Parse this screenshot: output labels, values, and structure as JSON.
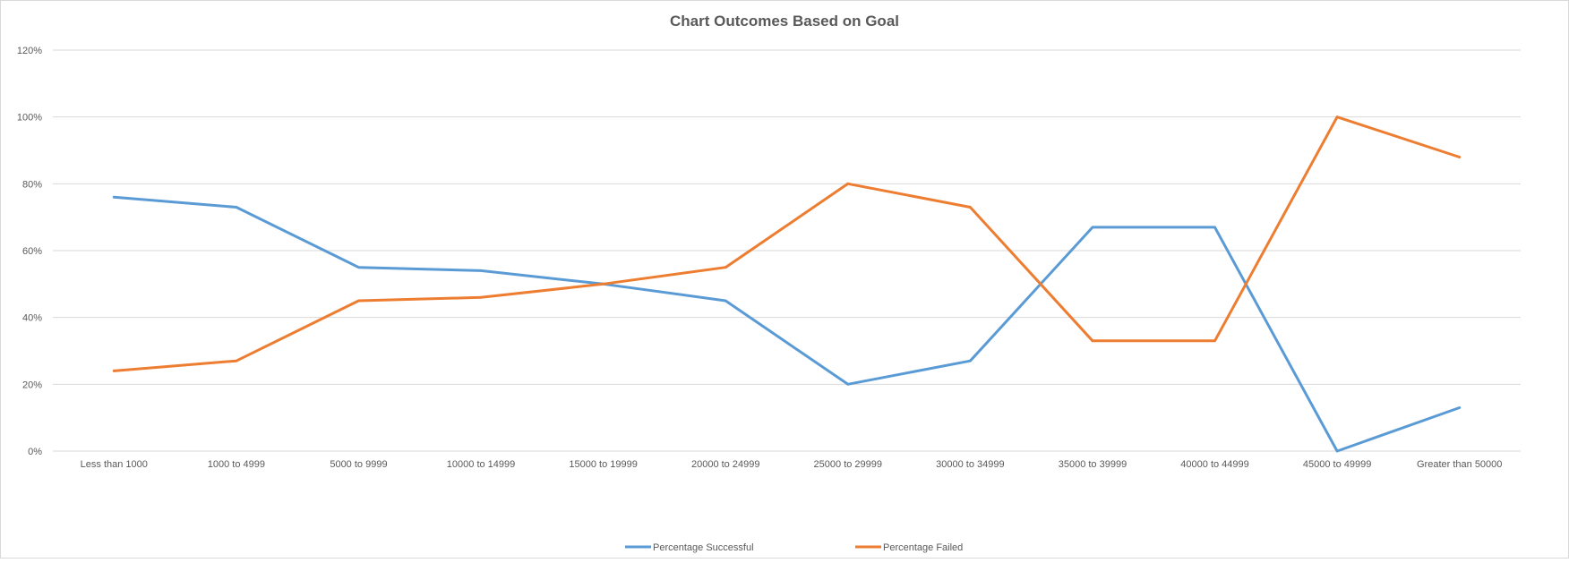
{
  "chart_data": {
    "type": "line",
    "title": "Chart Outcomes Based on Goal",
    "xlabel": "",
    "ylabel": "",
    "categories": [
      "Less than 1000",
      "1000 to 4999",
      "5000 to 9999",
      "10000 to 14999",
      "15000 to 19999",
      "20000 to 24999",
      "25000 to 29999",
      "30000 to 34999",
      "35000 to 39999",
      "40000 to 44999",
      "45000 to 49999",
      "Greater than 50000"
    ],
    "y_ticks": [
      "0%",
      "20%",
      "40%",
      "60%",
      "80%",
      "100%",
      "120%"
    ],
    "ylim": [
      0,
      120
    ],
    "grid": true,
    "legend_position": "bottom",
    "series": [
      {
        "name": "Percentage Successful",
        "color": "#5B9BD5",
        "values": [
          76,
          73,
          55,
          54,
          50,
          45,
          20,
          27,
          67,
          67,
          0,
          13
        ]
      },
      {
        "name": "Percentage Failed",
        "color": "#ED7D31",
        "values": [
          24,
          27,
          45,
          46,
          50,
          55,
          80,
          73,
          33,
          33,
          100,
          88
        ]
      }
    ]
  }
}
